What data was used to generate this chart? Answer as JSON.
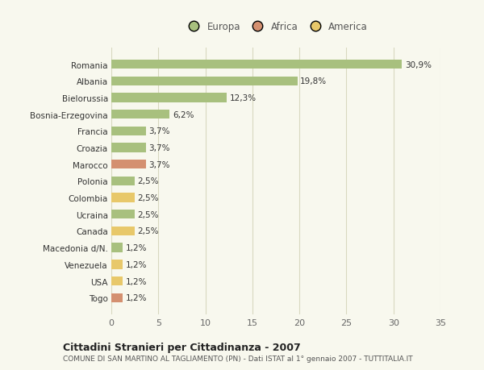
{
  "categories": [
    "Romania",
    "Albania",
    "Bielorussia",
    "Bosnia-Erzegovina",
    "Francia",
    "Croazia",
    "Marocco",
    "Polonia",
    "Colombia",
    "Ucraina",
    "Canada",
    "Macedonia d/N.",
    "Venezuela",
    "USA",
    "Togo"
  ],
  "values": [
    30.9,
    19.8,
    12.3,
    6.2,
    3.7,
    3.7,
    3.7,
    2.5,
    2.5,
    2.5,
    2.5,
    1.2,
    1.2,
    1.2,
    1.2
  ],
  "labels": [
    "30,9%",
    "19,8%",
    "12,3%",
    "6,2%",
    "3,7%",
    "3,7%",
    "3,7%",
    "2,5%",
    "2,5%",
    "2,5%",
    "2,5%",
    "1,2%",
    "1,2%",
    "1,2%",
    "1,2%"
  ],
  "colors": [
    "#a8c07e",
    "#a8c07e",
    "#a8c07e",
    "#a8c07e",
    "#a8c07e",
    "#a8c07e",
    "#d49070",
    "#a8c07e",
    "#e8c86a",
    "#a8c07e",
    "#e8c86a",
    "#a8c07e",
    "#e8c86a",
    "#e8c86a",
    "#d49070"
  ],
  "legend_labels": [
    "Europa",
    "Africa",
    "America"
  ],
  "legend_colors": [
    "#a8c07e",
    "#d49070",
    "#e8c86a"
  ],
  "xlim": [
    0,
    35
  ],
  "xticks": [
    0,
    5,
    10,
    15,
    20,
    25,
    30,
    35
  ],
  "title": "Cittadini Stranieri per Cittadinanza - 2007",
  "subtitle": "COMUNE DI SAN MARTINO AL TAGLIAMENTO (PN) - Dati ISTAT al 1° gennaio 2007 - TUTTITALIA.IT",
  "bg_color": "#f8f8ee",
  "grid_color": "#d8d8c0",
  "bar_height": 0.55
}
